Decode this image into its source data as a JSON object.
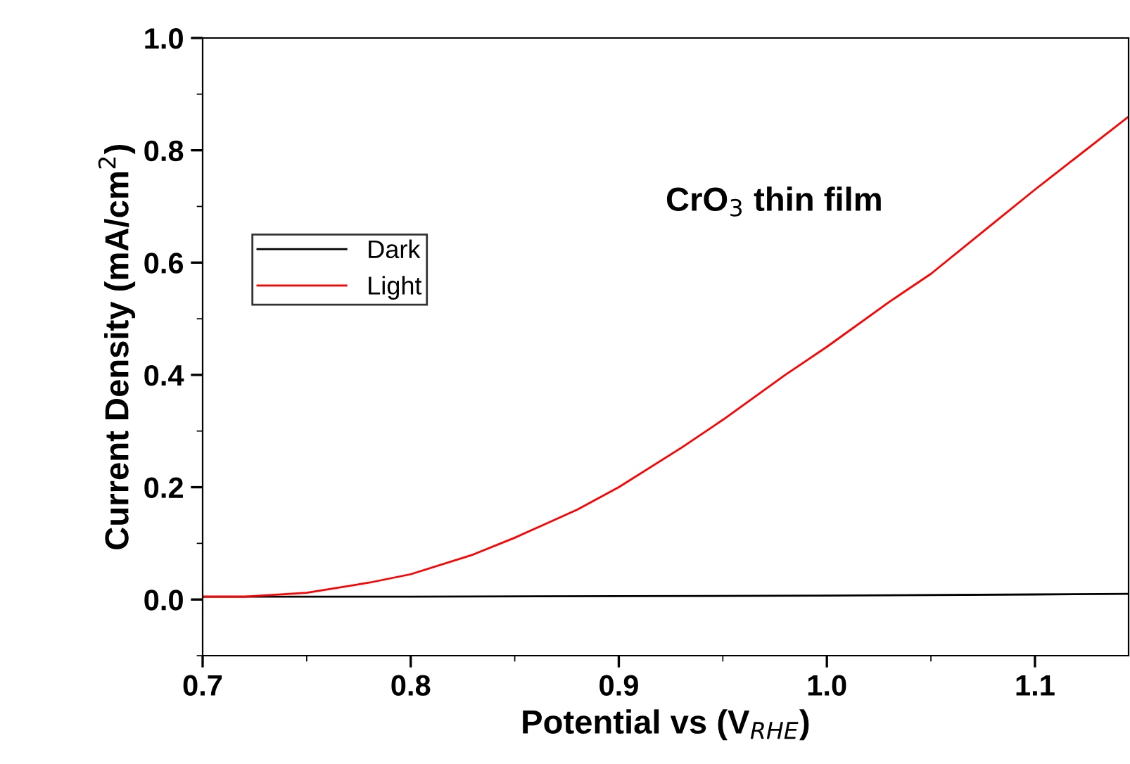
{
  "chart_data": {
    "type": "line",
    "xlabel": "Potential vs (V$_{RHE}$)",
    "ylabel": "Current Density (mA/cm$^{2}$)",
    "annotations": [
      "CrO$_{3}$ thin film"
    ],
    "xlim": [
      0.7,
      1.145
    ],
    "xticks": [
      {
        "value": 0.7,
        "label": "0.7"
      },
      {
        "value": 0.8,
        "label": "0.8"
      },
      {
        "value": 0.9,
        "label": "0.9"
      },
      {
        "value": 1.0,
        "label": "1.0"
      },
      {
        "value": 1.1,
        "label": "1.1"
      }
    ],
    "ylim": [
      -0.1,
      1.0
    ],
    "yticks": [
      {
        "value": 0.0,
        "label": "0.0"
      },
      {
        "value": 0.2,
        "label": "0.2"
      },
      {
        "value": 0.4,
        "label": "0.4"
      },
      {
        "value": 0.6,
        "label": "0.6"
      },
      {
        "value": 0.8,
        "label": "0.8"
      },
      {
        "value": 1.0,
        "label": "1.0"
      }
    ],
    "grid": false,
    "legend": "left",
    "marker": "none",
    "line_style": "solid",
    "series": [
      {
        "name": "Dark",
        "color": "#000000",
        "x": [
          0.7,
          0.8,
          0.9,
          1.0,
          1.1,
          1.145
        ],
        "values": [
          0.005,
          0.005,
          0.006,
          0.007,
          0.009,
          0.01
        ]
      },
      {
        "name": "Light",
        "color": "#ff0000",
        "x": [
          0.7,
          0.72,
          0.75,
          0.78,
          0.8,
          0.83,
          0.85,
          0.88,
          0.9,
          0.93,
          0.95,
          0.98,
          1.0,
          1.03,
          1.05,
          1.08,
          1.1,
          1.145
        ],
        "values": [
          0.005,
          0.005,
          0.012,
          0.03,
          0.045,
          0.08,
          0.11,
          0.16,
          0.2,
          0.27,
          0.32,
          0.4,
          0.45,
          0.53,
          0.58,
          0.67,
          0.73,
          0.86
        ]
      }
    ]
  }
}
